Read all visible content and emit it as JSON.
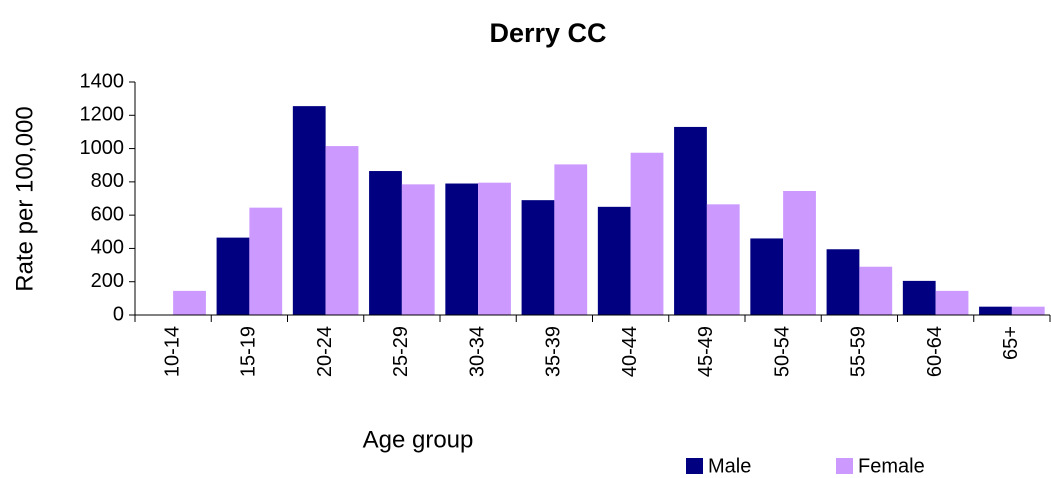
{
  "chart_data": {
    "type": "bar",
    "title": "Derry CC",
    "x_label": "Age group",
    "y_label": "Rate per 100,000",
    "categories": [
      "10-14",
      "15-19",
      "20-24",
      "25-29",
      "30-34",
      "35-39",
      "40-44",
      "45-49",
      "50-54",
      "55-59",
      "60-64",
      "65+"
    ],
    "series": [
      {
        "name": "Male",
        "color": "#000080",
        "values": [
          0,
          465,
          1255,
          865,
          790,
          690,
          650,
          1130,
          460,
          395,
          205,
          50
        ]
      },
      {
        "name": "Female",
        "color": "#cc99ff",
        "values": [
          145,
          645,
          1015,
          785,
          795,
          905,
          975,
          665,
          745,
          290,
          145,
          50
        ]
      }
    ],
    "ylim": [
      0,
      1400
    ],
    "yticks": [
      0,
      200,
      400,
      600,
      800,
      1000,
      1200,
      1400
    ],
    "grid": false,
    "legend": "bottom"
  }
}
